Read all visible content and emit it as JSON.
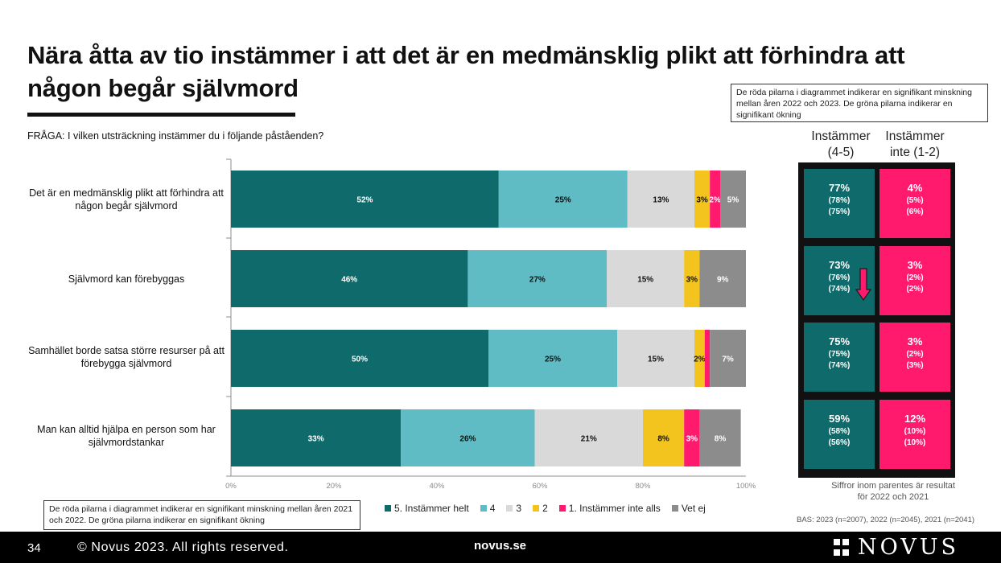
{
  "title": "Nära åtta av tio instämmer i att det är en medmänsklig plikt att förhindra att någon begår självmord",
  "question": "FRÅGA: I vilken utsträckning instämmer du i följande påståenden?",
  "note_top": "De röda pilarna i diagrammet indikerar en signifikant minskning mellan åren 2022 och 2023. De gröna pilarna indikerar en signifikant ökning",
  "note_bottom": "De röda pilarna i diagrammet indikerar en signifikant minskning mellan åren 2021 och 2022. De gröna pilarna indikerar en signifikant ökning",
  "summary": {
    "header_agree": "Instämmer (4-5)",
    "header_disagree": "Instämmer inte (1-2)",
    "rows": [
      {
        "agree": "77%",
        "agree_2022": "(78%)",
        "agree_2021": "(75%)",
        "disagree": "4%",
        "disagree_2022": "(5%)",
        "disagree_2021": "(6%)"
      },
      {
        "agree": "73%",
        "agree_2022": "(76%)",
        "agree_2021": "(74%)",
        "disagree": "3%",
        "disagree_2022": "(2%)",
        "disagree_2021": "(2%)"
      },
      {
        "agree": "75%",
        "agree_2022": "(75%)",
        "agree_2021": "(74%)",
        "disagree": "3%",
        "disagree_2022": "(2%)",
        "disagree_2021": "(3%)"
      },
      {
        "agree": "59%",
        "agree_2022": "(58%)",
        "agree_2021": "(56%)",
        "disagree": "12%",
        "disagree_2022": "(10%)",
        "disagree_2021": "(10%)"
      }
    ],
    "footnote": "Siffror inom parentes är resultat för 2022 och 2021",
    "arrow_color": "#ff1a6e"
  },
  "bas": "BAS: 2023 (n=2007), 2022 (n=2045), 2021 (n=2041)",
  "footer": {
    "page": "34",
    "copyright": "© Novus 2023. All rights reserved.",
    "site": "novus.se",
    "logo": "NOVUS"
  },
  "chart_data": {
    "type": "bar",
    "orientation": "horizontal",
    "stacked": true,
    "categories": [
      "Det är en medmänsklig plikt att förhindra att någon begår självmord",
      "Självmord kan förebyggas",
      "Samhället borde satsa större resurser på att förebygga självmord",
      "Man kan alltid hjälpa en person som har självmordstankar"
    ],
    "series": [
      {
        "name": "5. Instämmer helt",
        "color": "#0f6b6b",
        "label_color": "#ffffff",
        "values": [
          52,
          46,
          50,
          33
        ]
      },
      {
        "name": "4",
        "color": "#5fbcc4",
        "label_color": "#111111",
        "values": [
          25,
          27,
          25,
          26
        ]
      },
      {
        "name": "3",
        "color": "#d9d9d9",
        "label_color": "#111111",
        "values": [
          13,
          15,
          15,
          21
        ]
      },
      {
        "name": "2",
        "color": "#f2c41d",
        "label_color": "#111111",
        "values": [
          3,
          3,
          2,
          8
        ]
      },
      {
        "name": "1. Instämmer inte alls",
        "color": "#ff1a6e",
        "label_color": "#ffffff",
        "values": [
          2,
          0,
          1,
          3
        ]
      },
      {
        "name": "Vet ej",
        "color": "#8c8c8c",
        "label_color": "#ffffff",
        "values": [
          5,
          9,
          7,
          8
        ]
      }
    ],
    "data_labels": [
      [
        "52%",
        "25%",
        "13%",
        "3%",
        "2%",
        "5%"
      ],
      [
        "46%",
        "27%",
        "15%",
        "3%",
        "",
        "9%"
      ],
      [
        "50%",
        "25%",
        "15%",
        "2%",
        "",
        "7%"
      ],
      [
        "33%",
        "26%",
        "21%",
        "8%",
        "3%",
        "8%"
      ]
    ],
    "x_ticks": [
      "0%",
      "20%",
      "40%",
      "60%",
      "80%",
      "100%"
    ],
    "xlim": [
      0,
      100
    ],
    "legend_position": "bottom",
    "grid": false
  }
}
